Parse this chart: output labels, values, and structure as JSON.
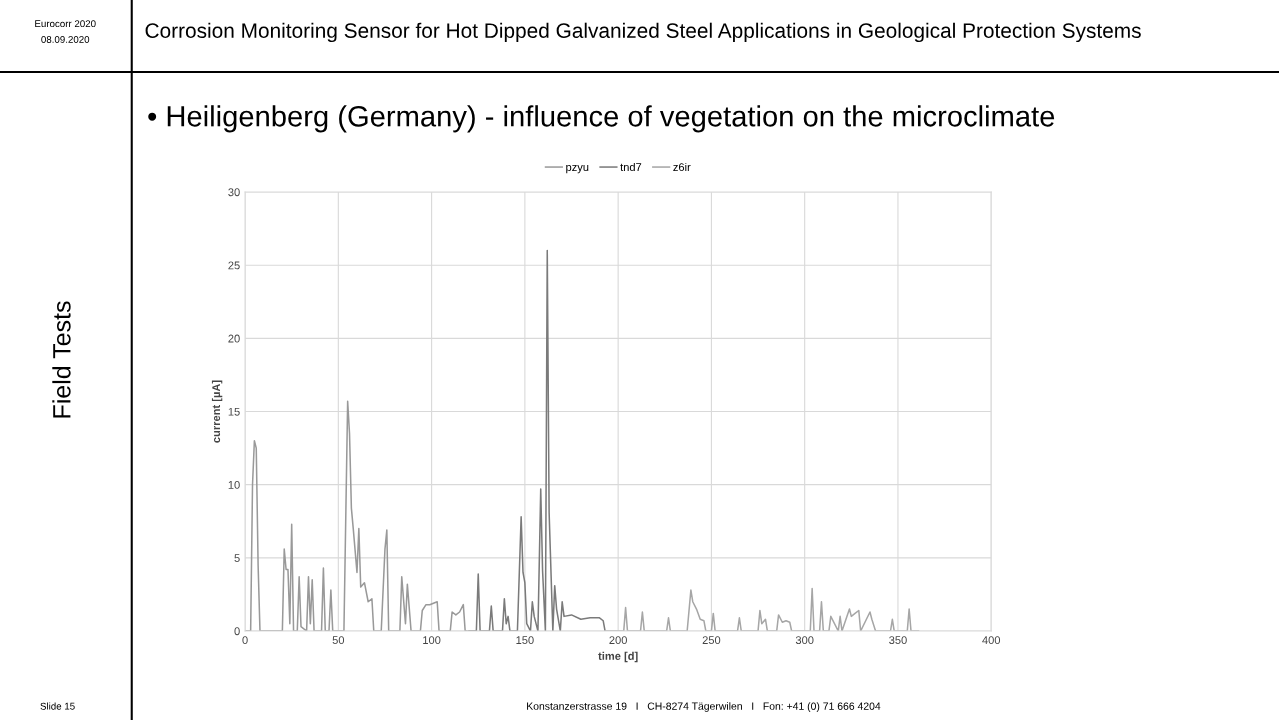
{
  "chart_data": {
    "type": "line",
    "title": "Corrosion Monitoring Sensor for Hot Dipped Galvanized Steel Applications in Geological Protection Systems",
    "subtitle": "• Heiligenberg (Germany) - influence of vegetation on the microclimate",
    "xlabel": "time [d]",
    "ylabel": "current [µA]",
    "annotations": [
      "Eurocorr 2020",
      "08.09.2020",
      "Field Tests",
      "Slide 15",
      "Konstanzerstrasse 19   I   CH-8274 Tägerwilen   I   Fon: +41 (0) 71 666 4204"
    ],
    "xlim": [
      0,
      400
    ],
    "xticks": [
      0,
      50,
      100,
      150,
      200,
      250,
      300,
      350,
      400
    ],
    "ylim": [
      0,
      30
    ],
    "yticks": [
      0,
      5,
      10,
      15,
      20,
      25,
      30
    ],
    "grid": true,
    "legend": "top",
    "marker": "none",
    "line_style": "solid",
    "series": [
      {
        "name": "pzyu",
        "color": "#999999",
        "x": [
          0,
          3,
          4,
          5,
          6,
          7,
          8,
          20,
          21,
          22,
          23,
          24,
          25,
          26,
          28,
          29,
          30,
          33,
          34,
          35,
          36,
          37,
          41,
          42,
          43,
          45,
          46,
          47,
          53,
          55,
          56,
          57,
          58,
          60,
          61,
          62,
          64,
          66,
          68,
          69,
          73,
          75,
          76,
          77,
          83,
          84,
          86,
          87,
          89,
          94,
          95,
          97,
          99,
          101,
          103,
          104,
          110,
          111,
          113,
          115,
          117,
          118,
          119
        ],
        "values": [
          0,
          0,
          10,
          13,
          12.5,
          4.5,
          0,
          0,
          5.6,
          4.2,
          4.2,
          0.5,
          7.3,
          0,
          0,
          3.7,
          0.3,
          0,
          3.7,
          0.5,
          3.5,
          0,
          0,
          4.3,
          0,
          0,
          2.8,
          0,
          0,
          15.7,
          13.5,
          8.4,
          7,
          4,
          7,
          3,
          3.3,
          2,
          2.2,
          0,
          0,
          5.6,
          6.9,
          0,
          0,
          3.7,
          0.5,
          3.2,
          0,
          0,
          1.4,
          1.8,
          1.8,
          1.9,
          2,
          0,
          0,
          1.3,
          1.1,
          1.3,
          1.8,
          0,
          0
        ]
      },
      {
        "name": "tnd7",
        "color": "#7a7a7a",
        "x": [
          120,
          124,
          125,
          126,
          131,
          132,
          133,
          138,
          139,
          140,
          141,
          142,
          146,
          148,
          149,
          150,
          151,
          153,
          154,
          155,
          157,
          158.5,
          159.5,
          161,
          162,
          163,
          165,
          166,
          167,
          169,
          170,
          171,
          175,
          180,
          185,
          190,
          192,
          193
        ],
        "values": [
          0,
          0,
          3.9,
          0,
          0,
          1.7,
          0,
          0,
          2.2,
          0.5,
          1,
          0,
          0,
          7.8,
          4,
          3.3,
          0.5,
          0,
          2,
          1,
          0,
          9.7,
          4.1,
          0,
          26,
          8.1,
          0,
          3.1,
          1.5,
          0,
          2,
          1,
          1.1,
          0.8,
          0.9,
          0.9,
          0.7,
          0
        ]
      },
      {
        "name": "z6ir",
        "color": "#a6a6a6",
        "x": [
          193,
          203,
          204,
          205,
          212,
          213,
          214,
          226,
          227,
          228,
          237,
          239,
          240,
          242,
          244,
          246,
          247,
          250,
          251,
          252,
          264,
          265,
          266,
          275,
          276,
          277,
          279,
          280,
          281,
          285,
          286,
          288,
          290,
          292,
          293,
          303,
          304,
          305,
          308,
          309,
          310,
          313,
          314,
          318,
          319,
          320,
          324,
          325,
          327,
          329,
          330,
          335,
          336,
          338,
          346,
          347,
          348,
          355,
          356,
          357,
          361
        ],
        "values": [
          0,
          0,
          1.6,
          0,
          0,
          1.3,
          0,
          0,
          0.9,
          0,
          0,
          2.8,
          2,
          1.5,
          0.8,
          0.7,
          0,
          0,
          1.2,
          0,
          0,
          0.9,
          0,
          0,
          1.4,
          0.5,
          0.8,
          0,
          0,
          0,
          1.1,
          0.6,
          0.7,
          0.6,
          0,
          0,
          2.9,
          0,
          0,
          2,
          0,
          0,
          1,
          0,
          1,
          0,
          1.5,
          1,
          1.2,
          1.4,
          0,
          1.3,
          0.8,
          0,
          0,
          0.8,
          0,
          0,
          1.5,
          0,
          0
        ]
      }
    ]
  }
}
